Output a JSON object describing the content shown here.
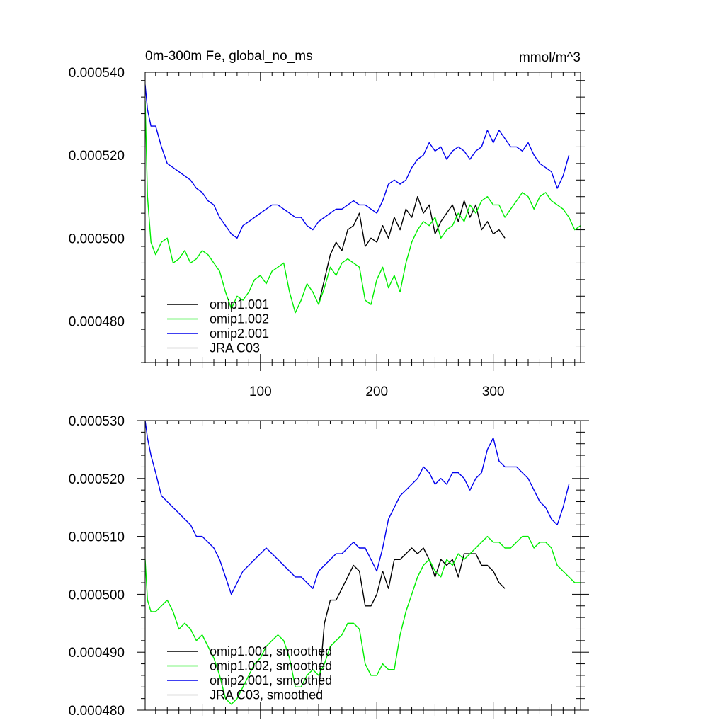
{
  "chart_data": [
    {
      "type": "line",
      "title_left": "0m-300m Fe, global_no_ms",
      "title_right": "mmol/m^3",
      "xlim": [
        1,
        375
      ],
      "ylim": [
        0.00047,
        0.00054
      ],
      "xticks": [
        100,
        200,
        300
      ],
      "xtick_labels": [
        "100",
        "200",
        "300"
      ],
      "yticks": [
        0.00048,
        0.0005,
        0.00052,
        0.00054
      ],
      "ytick_labels": [
        "0.000480",
        "0.000500",
        "0.000520",
        "0.000540"
      ],
      "legend": [
        "omip1.001",
        "omip1.002",
        "omip2.001",
        "JRA C03"
      ],
      "series": [
        {
          "name": "omip1.001",
          "color": "#000000",
          "x": [
            150,
            155,
            160,
            165,
            170,
            175,
            180,
            185,
            190,
            195,
            200,
            205,
            210,
            215,
            220,
            225,
            230,
            235,
            240,
            245,
            250,
            255,
            260,
            265,
            270,
            275,
            280,
            285,
            290,
            295,
            300,
            305,
            310
          ],
          "y": [
            0.000484,
            0.00049,
            0.000496,
            0.000499,
            0.000497,
            0.000502,
            0.000503,
            0.000506,
            0.000498,
            0.0005,
            0.000499,
            0.000503,
            0.0005,
            0.000505,
            0.000502,
            0.000507,
            0.000505,
            0.00051,
            0.000506,
            0.000508,
            0.000501,
            0.000504,
            0.000506,
            0.000508,
            0.000504,
            0.000509,
            0.000505,
            0.000508,
            0.000502,
            0.000504,
            0.000501,
            0.000502,
            0.0005
          ]
        },
        {
          "name": "omip1.002",
          "color": "#00ee00",
          "x": [
            1,
            3,
            6,
            10,
            15,
            20,
            25,
            30,
            35,
            40,
            45,
            50,
            55,
            60,
            65,
            70,
            75,
            80,
            85,
            90,
            95,
            100,
            105,
            110,
            115,
            120,
            125,
            130,
            135,
            140,
            145,
            150,
            155,
            160,
            165,
            170,
            175,
            180,
            185,
            190,
            195,
            200,
            205,
            210,
            215,
            220,
            225,
            230,
            235,
            240,
            245,
            250,
            255,
            260,
            265,
            270,
            275,
            280,
            285,
            290,
            295,
            300,
            305,
            310,
            315,
            320,
            325,
            330,
            335,
            340,
            345,
            350,
            355,
            360,
            365,
            370,
            375
          ],
          "y": [
            0.000533,
            0.00051,
            0.000499,
            0.000496,
            0.000499,
            0.0005,
            0.000494,
            0.000495,
            0.000497,
            0.000494,
            0.000495,
            0.000497,
            0.000496,
            0.000494,
            0.000492,
            0.000487,
            0.000483,
            0.000486,
            0.000485,
            0.000487,
            0.00049,
            0.000491,
            0.000489,
            0.000492,
            0.000493,
            0.000494,
            0.000487,
            0.000482,
            0.000485,
            0.000489,
            0.000487,
            0.000484,
            0.000488,
            0.000493,
            0.000491,
            0.000494,
            0.000495,
            0.000494,
            0.000493,
            0.000485,
            0.000484,
            0.00049,
            0.000493,
            0.000488,
            0.000491,
            0.000487,
            0.000494,
            0.000499,
            0.000502,
            0.000504,
            0.000503,
            0.000505,
            0.0005,
            0.000502,
            0.000503,
            0.000506,
            0.000504,
            0.000508,
            0.000506,
            0.000509,
            0.00051,
            0.000508,
            0.000508,
            0.000505,
            0.000507,
            0.000509,
            0.000511,
            0.00051,
            0.000507,
            0.00051,
            0.000511,
            0.000509,
            0.000508,
            0.000507,
            0.000505,
            0.000502,
            0.000503
          ]
        },
        {
          "name": "omip2.001",
          "color": "#0000ee",
          "x": [
            1,
            3,
            6,
            10,
            15,
            20,
            25,
            30,
            35,
            40,
            45,
            50,
            55,
            60,
            65,
            70,
            75,
            80,
            85,
            90,
            95,
            100,
            105,
            110,
            115,
            120,
            125,
            130,
            135,
            140,
            145,
            150,
            155,
            160,
            165,
            170,
            175,
            180,
            185,
            190,
            195,
            200,
            205,
            210,
            215,
            220,
            225,
            230,
            235,
            240,
            245,
            250,
            255,
            260,
            265,
            270,
            275,
            280,
            285,
            290,
            295,
            300,
            305,
            310,
            315,
            320,
            325,
            330,
            335,
            340,
            345,
            350,
            355,
            360,
            365
          ],
          "y": [
            0.000537,
            0.000531,
            0.000527,
            0.000527,
            0.000522,
            0.000518,
            0.000517,
            0.000516,
            0.000515,
            0.000514,
            0.000512,
            0.000511,
            0.000509,
            0.000508,
            0.000505,
            0.000503,
            0.000501,
            0.0005,
            0.000503,
            0.000504,
            0.000505,
            0.000506,
            0.000507,
            0.000508,
            0.000508,
            0.000507,
            0.000506,
            0.000505,
            0.000505,
            0.000503,
            0.000502,
            0.000504,
            0.000505,
            0.000506,
            0.000507,
            0.000507,
            0.000508,
            0.000509,
            0.000508,
            0.000508,
            0.000507,
            0.000506,
            0.000509,
            0.000513,
            0.000514,
            0.000513,
            0.000514,
            0.000517,
            0.000519,
            0.00052,
            0.000523,
            0.000521,
            0.000522,
            0.000519,
            0.000521,
            0.000522,
            0.000521,
            0.000519,
            0.000521,
            0.000522,
            0.000526,
            0.000523,
            0.000526,
            0.000524,
            0.000522,
            0.000522,
            0.000521,
            0.000523,
            0.00052,
            0.000518,
            0.000517,
            0.000516,
            0.000512,
            0.000515,
            0.00052
          ]
        }
      ]
    },
    {
      "type": "line",
      "xlim": [
        1,
        375
      ],
      "ylim": [
        0.00048,
        0.00053
      ],
      "yticks": [
        0.00048,
        0.00049,
        0.0005,
        0.00051,
        0.00052,
        0.00053
      ],
      "ytick_labels": [
        "0.000480",
        "0.000490",
        "0.000500",
        "0.000510",
        "0.000520",
        "0.000530"
      ],
      "legend": [
        "omip1.001, smoothed",
        "omip1.002, smoothed",
        "omip2.001, smoothed",
        "JRA C03, smoothed"
      ],
      "series": [
        {
          "name": "omip1.001, smoothed",
          "color": "#000000",
          "x": [
            150,
            155,
            160,
            165,
            170,
            175,
            180,
            185,
            190,
            195,
            200,
            205,
            210,
            215,
            220,
            225,
            230,
            235,
            240,
            245,
            250,
            255,
            260,
            265,
            270,
            275,
            280,
            285,
            290,
            295,
            300,
            305,
            310
          ],
          "y": [
            0.000483,
            0.000495,
            0.000499,
            0.000499,
            0.000501,
            0.000503,
            0.000505,
            0.000504,
            0.000498,
            0.000498,
            0.0005,
            0.000504,
            0.000501,
            0.000506,
            0.000506,
            0.000507,
            0.000508,
            0.000507,
            0.000508,
            0.000506,
            0.000503,
            0.000506,
            0.000505,
            0.000506,
            0.000503,
            0.000507,
            0.000507,
            0.000507,
            0.000505,
            0.000505,
            0.000504,
            0.000502,
            0.000501
          ]
        },
        {
          "name": "omip1.002, smoothed",
          "color": "#00ee00",
          "x": [
            1,
            3,
            6,
            10,
            15,
            20,
            25,
            30,
            35,
            40,
            45,
            50,
            55,
            60,
            65,
            70,
            75,
            80,
            85,
            90,
            95,
            100,
            105,
            110,
            115,
            120,
            125,
            130,
            135,
            140,
            145,
            150,
            155,
            160,
            165,
            170,
            175,
            180,
            185,
            190,
            195,
            200,
            205,
            210,
            215,
            220,
            225,
            230,
            235,
            240,
            245,
            250,
            255,
            260,
            265,
            270,
            275,
            280,
            285,
            290,
            295,
            300,
            305,
            310,
            315,
            320,
            325,
            330,
            335,
            340,
            345,
            350,
            355,
            360,
            365,
            370,
            375
          ],
          "y": [
            0.000506,
            0.000499,
            0.000497,
            0.000497,
            0.000498,
            0.000499,
            0.000497,
            0.000494,
            0.000495,
            0.000494,
            0.000492,
            0.000493,
            0.000491,
            0.000489,
            0.000486,
            0.000482,
            0.000481,
            0.000482,
            0.000484,
            0.000486,
            0.000488,
            0.000489,
            0.000491,
            0.000492,
            0.000493,
            0.000492,
            0.000489,
            0.000484,
            0.000484,
            0.000486,
            0.000487,
            0.000486,
            0.000488,
            0.000491,
            0.000492,
            0.000493,
            0.000495,
            0.000495,
            0.000494,
            0.000488,
            0.000486,
            0.000486,
            0.000488,
            0.000487,
            0.000487,
            0.000493,
            0.000497,
            0.0005,
            0.000503,
            0.000505,
            0.000506,
            0.000504,
            0.000503,
            0.000506,
            0.000505,
            0.000507,
            0.000506,
            0.000507,
            0.000508,
            0.000509,
            0.00051,
            0.000509,
            0.000509,
            0.000508,
            0.000508,
            0.000509,
            0.00051,
            0.00051,
            0.000508,
            0.000509,
            0.000509,
            0.000508,
            0.000505,
            0.000504,
            0.000503,
            0.000502,
            0.000502
          ]
        },
        {
          "name": "omip2.001, smoothed",
          "color": "#0000ee",
          "x": [
            1,
            3,
            6,
            10,
            15,
            20,
            25,
            30,
            35,
            40,
            45,
            50,
            55,
            60,
            65,
            70,
            75,
            80,
            85,
            90,
            95,
            100,
            105,
            110,
            115,
            120,
            125,
            130,
            135,
            140,
            145,
            150,
            155,
            160,
            165,
            170,
            175,
            180,
            185,
            190,
            195,
            200,
            205,
            210,
            215,
            220,
            225,
            230,
            235,
            240,
            245,
            250,
            255,
            260,
            265,
            270,
            275,
            280,
            285,
            290,
            295,
            300,
            305,
            310,
            315,
            320,
            325,
            330,
            335,
            340,
            345,
            350,
            355,
            360,
            365
          ],
          "y": [
            0.00053,
            0.000527,
            0.000524,
            0.000521,
            0.000517,
            0.000516,
            0.000515,
            0.000514,
            0.000513,
            0.000512,
            0.00051,
            0.00051,
            0.000509,
            0.000508,
            0.000506,
            0.000503,
            0.0005,
            0.000502,
            0.000504,
            0.000505,
            0.000506,
            0.000507,
            0.000508,
            0.000507,
            0.000506,
            0.000505,
            0.000504,
            0.000503,
            0.000503,
            0.000502,
            0.000501,
            0.000504,
            0.000505,
            0.000506,
            0.000507,
            0.000507,
            0.000508,
            0.000509,
            0.000508,
            0.000508,
            0.000506,
            0.000504,
            0.000508,
            0.000513,
            0.000515,
            0.000517,
            0.000518,
            0.000519,
            0.00052,
            0.000522,
            0.000521,
            0.000519,
            0.00052,
            0.000519,
            0.000521,
            0.000521,
            0.00052,
            0.000518,
            0.00052,
            0.000521,
            0.000525,
            0.000527,
            0.000523,
            0.000522,
            0.000522,
            0.000522,
            0.000521,
            0.00052,
            0.000518,
            0.000516,
            0.000515,
            0.000513,
            0.000512,
            0.000515,
            0.000519
          ]
        }
      ]
    }
  ]
}
